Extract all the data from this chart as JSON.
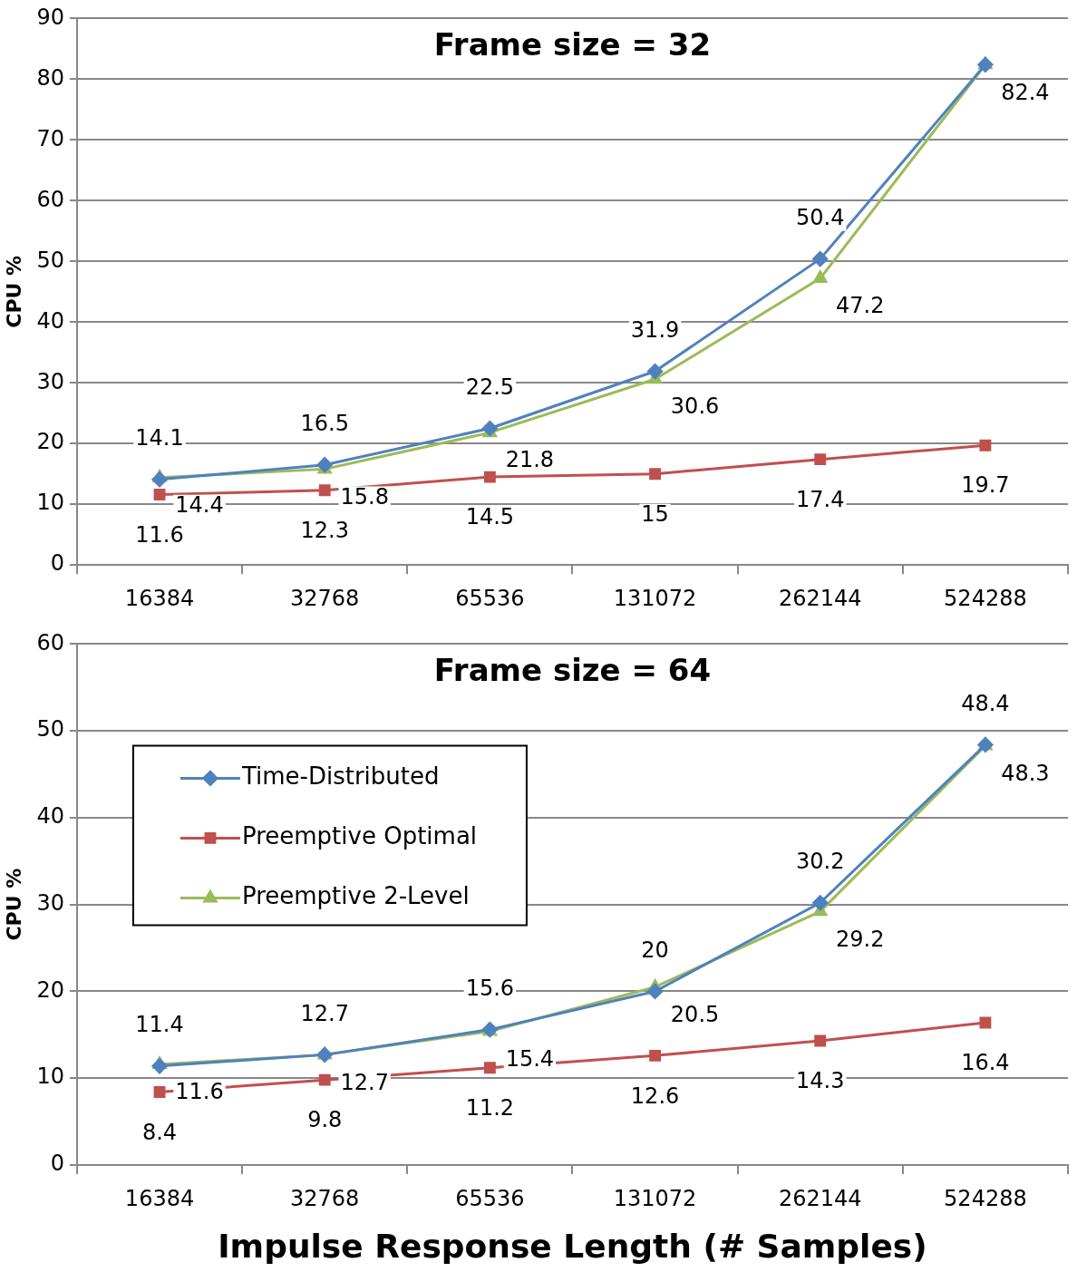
{
  "chart_data": [
    {
      "type": "line",
      "title": "Frame size = 32",
      "ylabel": "CPU %",
      "categories": [
        "16384",
        "32768",
        "65536",
        "131072",
        "262144",
        "524288"
      ],
      "ylim": [
        0,
        90
      ],
      "yticks": [
        0,
        10,
        20,
        30,
        40,
        50,
        60,
        70,
        80,
        90
      ],
      "grid": "y",
      "legend": false,
      "series": [
        {
          "color": "#4f81bd",
          "marker": "diamond",
          "values": [
            14.1,
            16.5,
            22.5,
            31.9,
            50.4,
            82.4
          ],
          "value_labels": [
            "14.1",
            "16.5",
            "22.5",
            "31.9",
            "50.4",
            null
          ]
        },
        {
          "color": "#c0504d",
          "marker": "square",
          "values": [
            11.6,
            12.3,
            14.5,
            15,
            17.4,
            19.7
          ],
          "value_labels": [
            "11.6",
            "12.3",
            "14.5",
            "15",
            "17.4",
            "19.7"
          ]
        },
        {
          "color": "#9bbb59",
          "marker": "triangle",
          "values": [
            14.4,
            15.8,
            21.8,
            30.6,
            47.2,
            82.4
          ],
          "value_labels": [
            "14.4",
            "15.8",
            "21.8",
            "30.6",
            "47.2",
            "82.4"
          ]
        }
      ]
    },
    {
      "type": "line",
      "title": "Frame size = 64",
      "ylabel": "CPU %",
      "xlabel": "Impulse Response Length (# Samples)",
      "categories": [
        "16384",
        "32768",
        "65536",
        "131072",
        "262144",
        "524288"
      ],
      "ylim": [
        0,
        60
      ],
      "yticks": [
        0,
        10,
        20,
        30,
        40,
        50,
        60
      ],
      "grid": "y",
      "legend": "top left",
      "series": [
        {
          "name": "Time-Distributed",
          "color": "#4f81bd",
          "marker": "diamond",
          "values": [
            11.4,
            12.7,
            15.6,
            20,
            30.2,
            48.4
          ],
          "value_labels": [
            "11.4",
            "12.7",
            "15.6",
            "20",
            "30.2",
            "48.4"
          ]
        },
        {
          "name": "Preemptive Optimal",
          "color": "#c0504d",
          "marker": "square",
          "values": [
            8.4,
            9.8,
            11.2,
            12.6,
            14.3,
            16.4
          ],
          "value_labels": [
            "8.4",
            "9.8",
            "11.2",
            "12.6",
            "14.3",
            "16.4"
          ]
        },
        {
          "name": "Preemptive 2-Level",
          "color": "#9bbb59",
          "marker": "triangle",
          "values": [
            11.6,
            12.7,
            15.4,
            20.5,
            29.2,
            48.3
          ],
          "value_labels": [
            "11.6",
            "12.7",
            "15.4",
            "20.5",
            "29.2",
            "48.3"
          ]
        }
      ]
    }
  ]
}
